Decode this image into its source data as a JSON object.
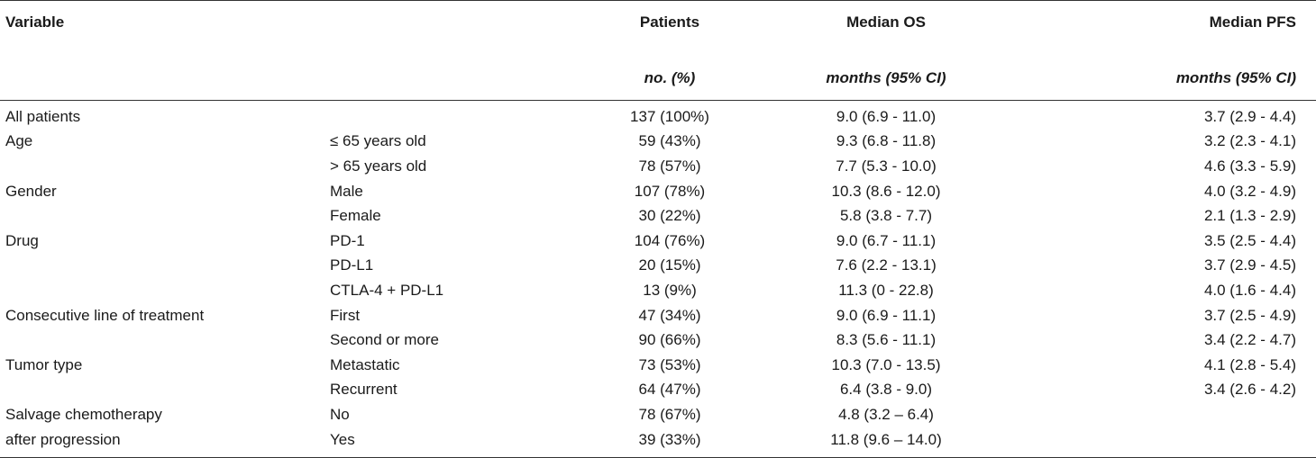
{
  "headers": [
    "Variable",
    "Patients",
    "Median OS",
    "Median PFS"
  ],
  "subheaders": [
    "no. (%)",
    "months (95% CI)",
    "months (95% CI)"
  ],
  "rows": [
    {
      "variable": "All patients",
      "subgroup": "",
      "patients": "137 (100%)",
      "os": "9.0 (6.9 - 11.0)",
      "pfs": "3.7 (2.9 - 4.4)"
    },
    {
      "variable": "Age",
      "subgroup": "≤ 65 years old",
      "patients": "59 (43%)",
      "os": "9.3 (6.8 - 11.8)",
      "pfs": "3.2 (2.3 - 4.1)"
    },
    {
      "variable": "",
      "subgroup": "> 65 years old",
      "patients": "78 (57%)",
      "os": "7.7 (5.3 - 10.0)",
      "pfs": "4.6 (3.3 - 5.9)"
    },
    {
      "variable": "Gender",
      "subgroup": "Male",
      "patients": "107 (78%)",
      "os": "10.3 (8.6 - 12.0)",
      "pfs": "4.0 (3.2 - 4.9)"
    },
    {
      "variable": "",
      "subgroup": "Female",
      "patients": "30 (22%)",
      "os": "5.8 (3.8 - 7.7)",
      "pfs": "2.1 (1.3 - 2.9)"
    },
    {
      "variable": "Drug",
      "subgroup": "PD-1",
      "patients": "104 (76%)",
      "os": "9.0 (6.7 - 11.1)",
      "pfs": "3.5 (2.5 - 4.4)"
    },
    {
      "variable": "",
      "subgroup": "PD-L1",
      "patients": "20 (15%)",
      "os": "7.6 (2.2 - 13.1)",
      "pfs": "3.7 (2.9 - 4.5)"
    },
    {
      "variable": "",
      "subgroup": "CTLA-4 + PD-L1",
      "patients": "13 (9%)",
      "os": "11.3 (0 - 22.8)",
      "pfs": "4.0 (1.6 - 4.4)"
    },
    {
      "variable": "Consecutive line of treatment",
      "subgroup": "First",
      "patients": "47 (34%)",
      "os": "9.0 (6.9 - 11.1)",
      "pfs": "3.7 (2.5 - 4.9)"
    },
    {
      "variable": "",
      "subgroup": "Second or more",
      "patients": "90 (66%)",
      "os": "8.3 (5.6 - 11.1)",
      "pfs": "3.4 (2.2 - 4.7)"
    },
    {
      "variable": "Tumor type",
      "subgroup": "Metastatic",
      "patients": "73 (53%)",
      "os": "10.3 (7.0 - 13.5)",
      "pfs": "4.1 (2.8 - 5.4)"
    },
    {
      "variable": "",
      "subgroup": "Recurrent",
      "patients": "64 (47%)",
      "os": "6.4 (3.8 - 9.0)",
      "pfs": "3.4 (2.6 - 4.2)"
    },
    {
      "variable": "Salvage chemotherapy",
      "subgroup": "No",
      "patients": "78 (67%)",
      "os": "4.8 (3.2 – 6.4)",
      "pfs": ""
    },
    {
      "variable": "after progression",
      "subgroup": "Yes",
      "patients": "39 (33%)",
      "os": "11.8 (9.6 – 14.0)",
      "pfs": ""
    }
  ]
}
